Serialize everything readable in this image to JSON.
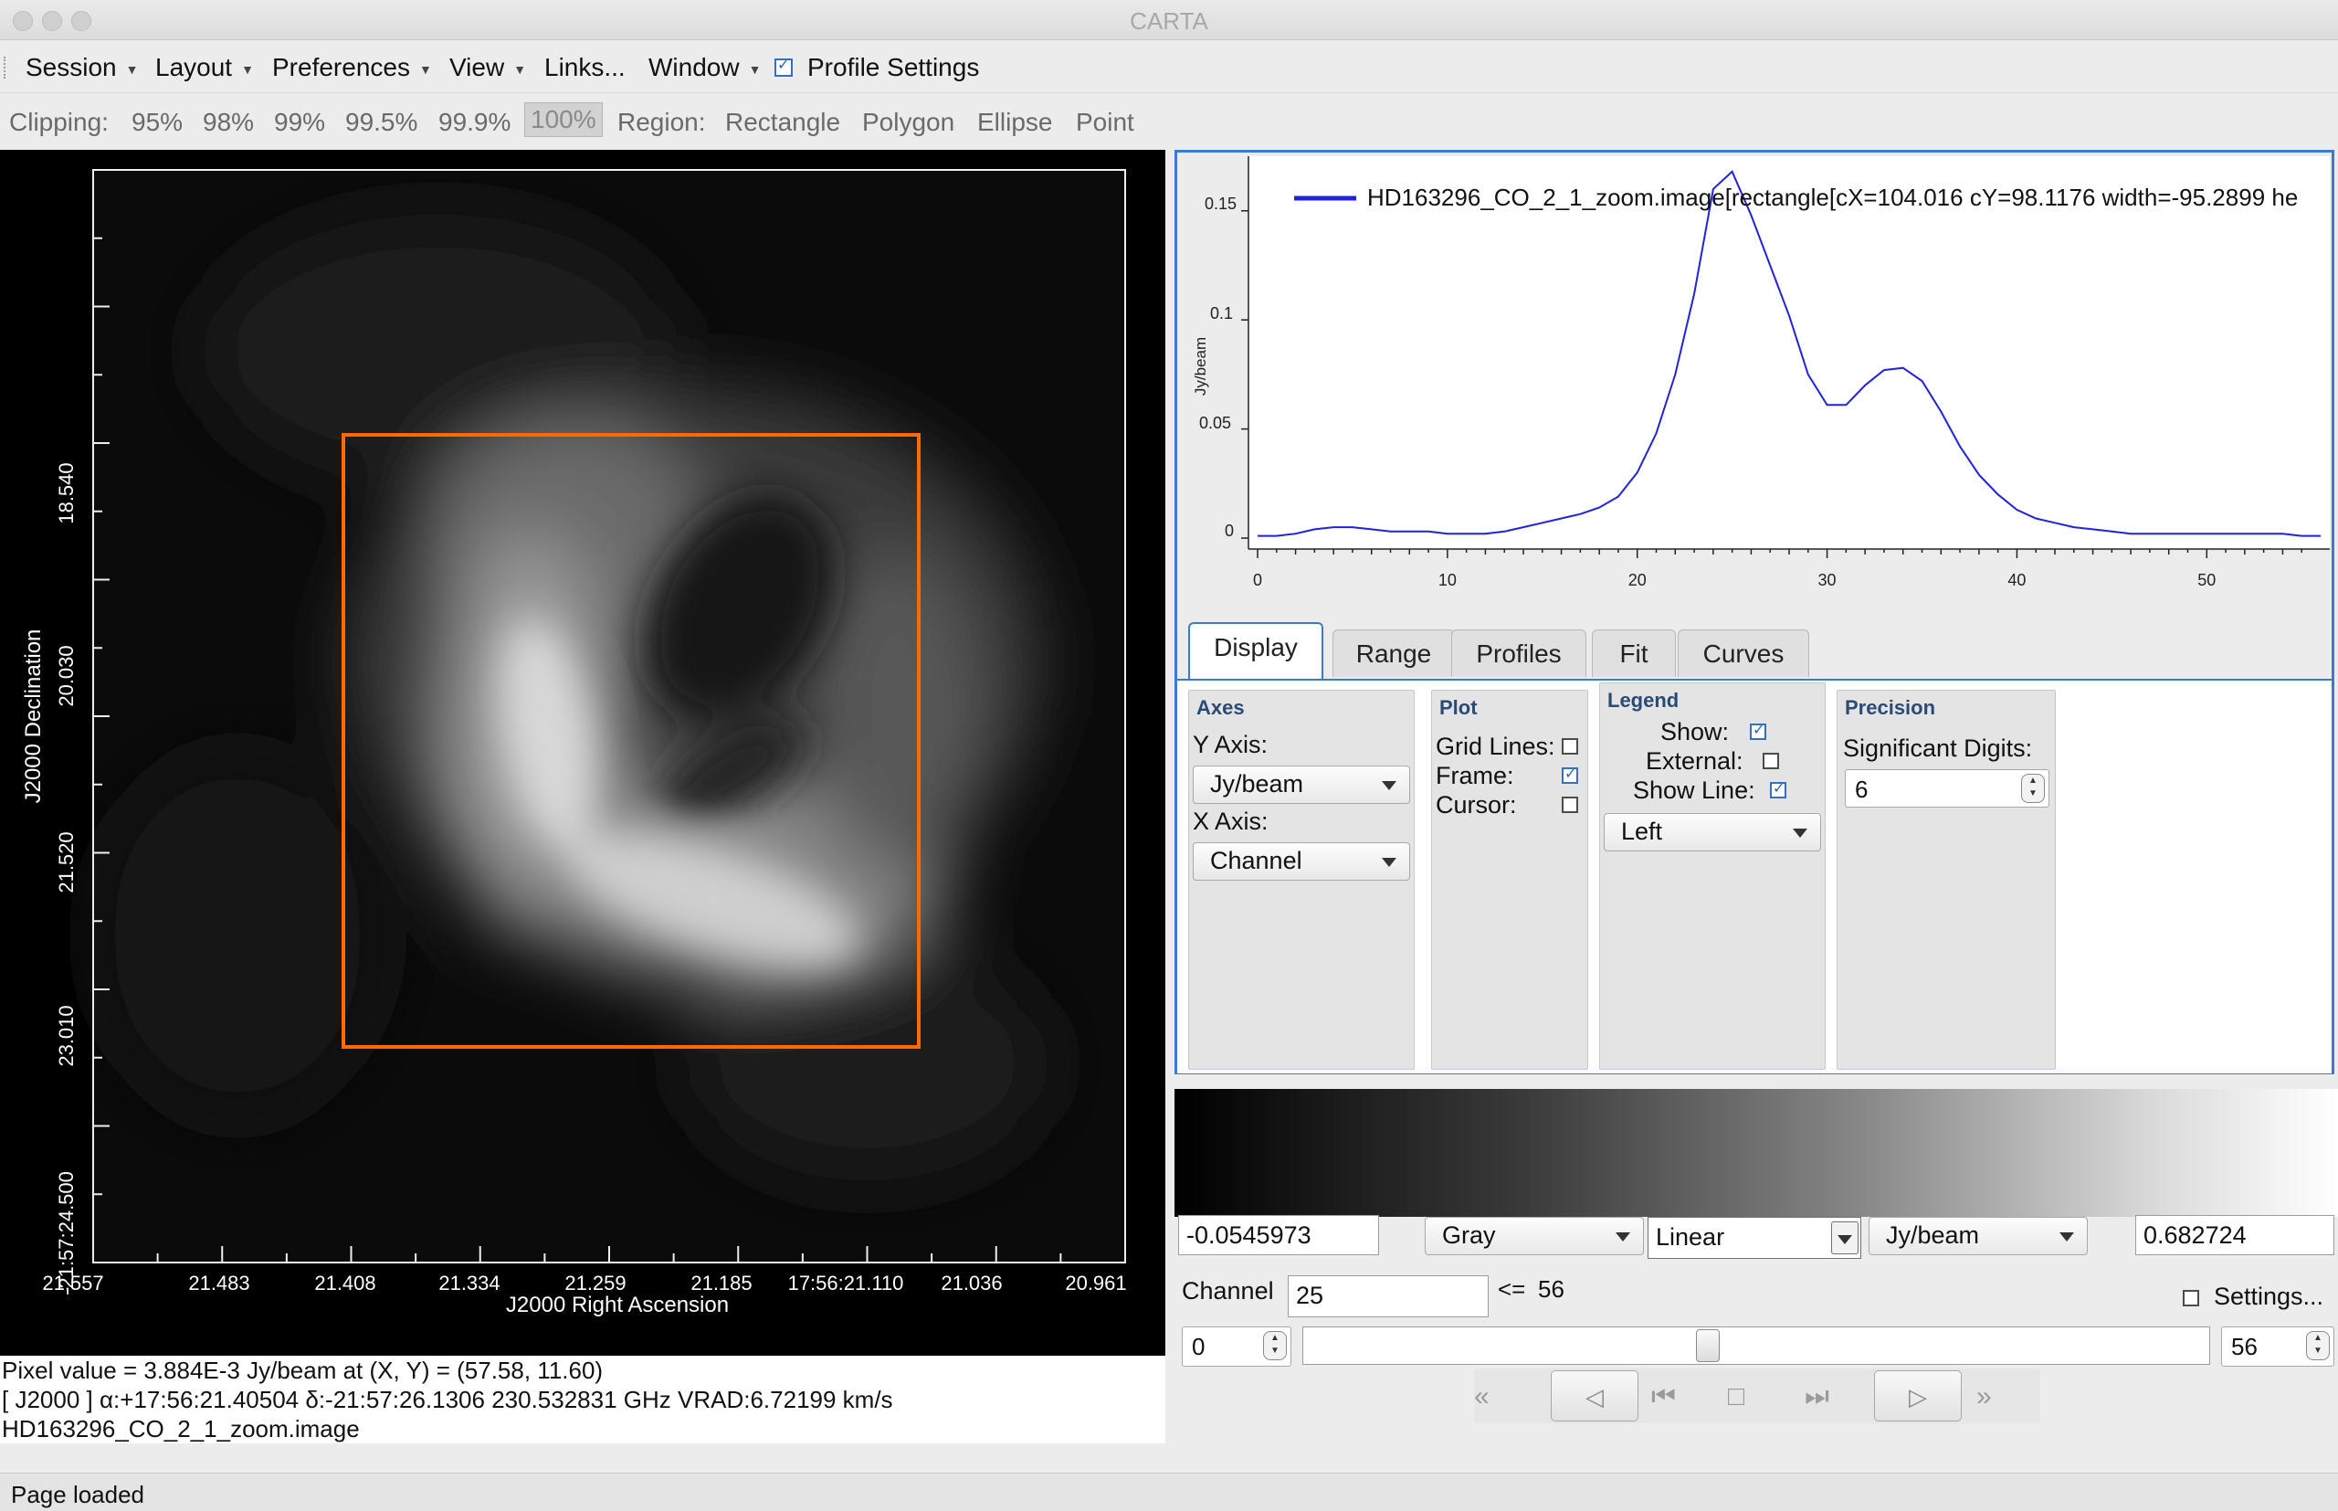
{
  "window": {
    "title": "CARTA"
  },
  "menu": {
    "session": "Session",
    "layout": "Layout",
    "preferences": "Preferences",
    "view": "View",
    "links": "Links...",
    "window": "Window",
    "profile_settings": "Profile Settings"
  },
  "toolbar": {
    "clipping_label": "Clipping:",
    "clipping_options": [
      "95%",
      "98%",
      "99%",
      "99.5%",
      "99.9%",
      "100%"
    ],
    "clipping_selected": "100%",
    "region_label": "Region:",
    "region_options": [
      "Rectangle",
      "Polygon",
      "Ellipse",
      "Point"
    ]
  },
  "image_view": {
    "x_axis_label": "J2000 Right Ascension",
    "y_axis_label": "J2000 Declination",
    "x_ticks": [
      "21.557",
      "21.483",
      "21.408",
      "21.334",
      "21.259",
      "21.185",
      "17:56:21.110",
      "21.036",
      "20.961"
    ],
    "y_ticks": [
      "18.540",
      "20.030",
      "21.520",
      "23.010",
      "-21:57:24.500"
    ],
    "region_color": "#ff6a00"
  },
  "cursor_info": {
    "line1": "Pixel value = 3.884E-3 Jy/beam at (X, Y) = (57.58, 11.60)",
    "line2": "[ J2000 ] α:+17:56:21.40504 δ:-21:57:26.1306 230.532831 GHz VRAD:6.72199 km/s",
    "line3": "HD163296_CO_2_1_zoom.image"
  },
  "profile": {
    "y_unit": "Jy/beam",
    "legend_text": "HD163296_CO_2_1_zoom.image[rectangle[cX=104.016 cY=98.1176 width=-95.2899 he",
    "line_color": "#2222dd",
    "y_ticks": [
      "0.15",
      "0.1",
      "0.05",
      "0"
    ],
    "x_ticks": [
      "0",
      "10",
      "20",
      "30",
      "40",
      "50"
    ]
  },
  "chart_data": {
    "type": "line",
    "title": "",
    "xlabel": "",
    "ylabel": "Jy/beam",
    "xlim": [
      0,
      56
    ],
    "ylim": [
      0,
      0.17
    ],
    "series": [
      {
        "name": "HD163296_CO_2_1_zoom.image[rectangle[cX=104.016 cY=98.1176 width=-95.2899 he",
        "x": [
          0,
          1,
          2,
          3,
          4,
          5,
          6,
          7,
          8,
          9,
          10,
          11,
          12,
          13,
          14,
          15,
          16,
          17,
          18,
          19,
          20,
          21,
          22,
          23,
          24,
          25,
          26,
          27,
          28,
          29,
          30,
          31,
          32,
          33,
          34,
          35,
          36,
          37,
          38,
          39,
          40,
          41,
          42,
          43,
          44,
          45,
          46,
          47,
          48,
          49,
          50,
          51,
          52,
          53,
          54,
          55,
          56
        ],
        "values": [
          0.001,
          0.001,
          0.002,
          0.004,
          0.005,
          0.005,
          0.004,
          0.003,
          0.003,
          0.003,
          0.002,
          0.002,
          0.002,
          0.003,
          0.005,
          0.007,
          0.009,
          0.011,
          0.014,
          0.019,
          0.03,
          0.048,
          0.075,
          0.112,
          0.16,
          0.168,
          0.148,
          0.125,
          0.102,
          0.075,
          0.061,
          0.061,
          0.07,
          0.077,
          0.078,
          0.072,
          0.058,
          0.042,
          0.029,
          0.02,
          0.013,
          0.009,
          0.007,
          0.005,
          0.004,
          0.003,
          0.002,
          0.002,
          0.002,
          0.002,
          0.002,
          0.002,
          0.002,
          0.002,
          0.002,
          0.001,
          0.001
        ]
      }
    ]
  },
  "tabs": [
    "Display",
    "Range",
    "Profiles",
    "Fit",
    "Curves"
  ],
  "display": {
    "axes_title": "Axes",
    "y_axis_label": "Y Axis:",
    "y_axis_value": "Jy/beam",
    "x_axis_label": "X Axis:",
    "x_axis_value": "Channel",
    "plot_title": "Plot",
    "grid_lines_label": "Grid Lines:",
    "frame_label": "Frame:",
    "cursor_label": "Cursor:",
    "legend_title": "Legend",
    "show_label": "Show:",
    "external_label": "External:",
    "show_line_label": "Show Line:",
    "legend_position": "Left",
    "precision_title": "Precision",
    "sig_digits_label": "Significant Digits:",
    "sig_digits_value": "6"
  },
  "colormap": {
    "min_value": "-0.0545973",
    "max_value": "0.682724",
    "map": "Gray",
    "scale": "Linear",
    "unit": "Jy/beam"
  },
  "animator": {
    "channel_label": "Channel",
    "channel_value": "25",
    "max_label": "<=",
    "max_value": "56",
    "settings_label": "Settings...",
    "range_start": "0",
    "range_end": "56",
    "slider_position": 0.446
  },
  "status": {
    "text": "Page loaded"
  }
}
